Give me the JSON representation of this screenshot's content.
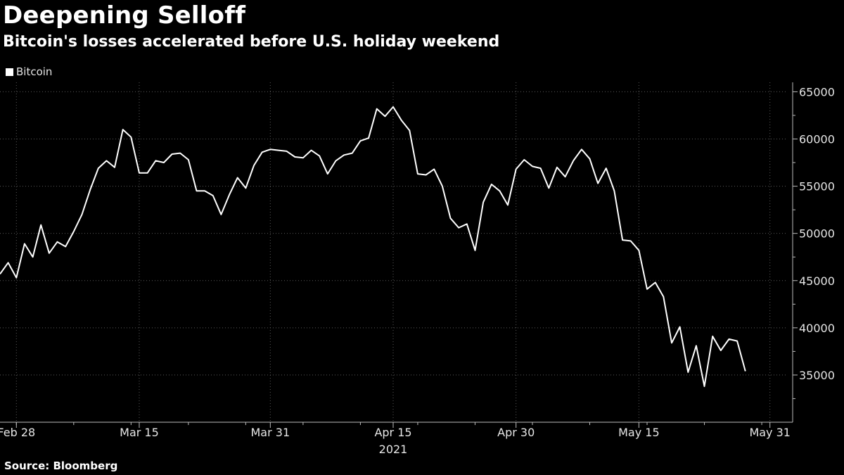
{
  "header": {
    "title": "Deepening Selloff",
    "subtitle": "Bitcoin's losses accelerated before U.S. holiday weekend"
  },
  "footer": {
    "source": "Source: Bloomberg"
  },
  "colors": {
    "background": "#000000",
    "line": "#ffffff",
    "grid": "#5a5a5a",
    "text": "#e6e6e6"
  },
  "chart_data": {
    "type": "line",
    "title": "Deepening Selloff",
    "subtitle": "Bitcoin's losses accelerated before U.S. holiday weekend",
    "legend": {
      "entries": [
        "Bitcoin"
      ],
      "placement": "top-left"
    },
    "grid": true,
    "x_range": [
      "2021-02-26",
      "2021-06-02"
    ],
    "x_ticks": [
      {
        "date": "2021-02-28",
        "label": "Feb 28"
      },
      {
        "date": "2021-03-15",
        "label": "Mar 15"
      },
      {
        "date": "2021-03-31",
        "label": "Mar 31"
      },
      {
        "date": "2021-04-15",
        "label": "Apr 15"
      },
      {
        "date": "2021-04-30",
        "label": "Apr 30"
      },
      {
        "date": "2021-05-15",
        "label": "May 15"
      },
      {
        "date": "2021-05-31",
        "label": "May 31"
      }
    ],
    "x_year_label": {
      "date": "2021-04-15",
      "label": "2021"
    },
    "y_axis": {
      "position": "right",
      "ylim": [
        30000,
        66000
      ],
      "ticks": [
        35000,
        40000,
        45000,
        50000,
        55000,
        60000,
        65000
      ]
    },
    "series": [
      {
        "name": "Bitcoin",
        "x": [
          "2021-02-26",
          "2021-02-27",
          "2021-02-28",
          "2021-03-01",
          "2021-03-02",
          "2021-03-03",
          "2021-03-04",
          "2021-03-05",
          "2021-03-06",
          "2021-03-07",
          "2021-03-08",
          "2021-03-09",
          "2021-03-10",
          "2021-03-11",
          "2021-03-12",
          "2021-03-13",
          "2021-03-14",
          "2021-03-15",
          "2021-03-16",
          "2021-03-17",
          "2021-03-18",
          "2021-03-19",
          "2021-03-20",
          "2021-03-21",
          "2021-03-22",
          "2021-03-23",
          "2021-03-24",
          "2021-03-25",
          "2021-03-26",
          "2021-03-27",
          "2021-03-28",
          "2021-03-29",
          "2021-03-30",
          "2021-03-31",
          "2021-04-01",
          "2021-04-02",
          "2021-04-03",
          "2021-04-04",
          "2021-04-05",
          "2021-04-06",
          "2021-04-07",
          "2021-04-08",
          "2021-04-09",
          "2021-04-10",
          "2021-04-11",
          "2021-04-12",
          "2021-04-13",
          "2021-04-14",
          "2021-04-15",
          "2021-04-16",
          "2021-04-17",
          "2021-04-18",
          "2021-04-19",
          "2021-04-20",
          "2021-04-21",
          "2021-04-22",
          "2021-04-23",
          "2021-04-24",
          "2021-04-25",
          "2021-04-26",
          "2021-04-27",
          "2021-04-28",
          "2021-04-29",
          "2021-04-30",
          "2021-05-01",
          "2021-05-02",
          "2021-05-03",
          "2021-05-04",
          "2021-05-05",
          "2021-05-06",
          "2021-05-07",
          "2021-05-08",
          "2021-05-09",
          "2021-05-10",
          "2021-05-11",
          "2021-05-12",
          "2021-05-13",
          "2021-05-14",
          "2021-05-15",
          "2021-05-16",
          "2021-05-17",
          "2021-05-18",
          "2021-05-19",
          "2021-05-20",
          "2021-05-21",
          "2021-05-22",
          "2021-05-23",
          "2021-05-24",
          "2021-05-25",
          "2021-05-26",
          "2021-05-27",
          "2021-05-28"
        ],
        "y": [
          45700,
          46900,
          45300,
          48900,
          47500,
          50900,
          47900,
          49100,
          48600,
          50200,
          52000,
          54600,
          56900,
          57700,
          57000,
          61000,
          60200,
          56400,
          56400,
          57700,
          57500,
          58400,
          58500,
          57800,
          54500,
          54500,
          54000,
          52000,
          54100,
          55900,
          54800,
          57200,
          58600,
          58900,
          58800,
          58700,
          58100,
          58000,
          58800,
          58200,
          56300,
          57700,
          58300,
          58500,
          59800,
          60100,
          63200,
          62400,
          63400,
          62000,
          60900,
          56300,
          56200,
          56800,
          55000,
          51600,
          50600,
          51000,
          48200,
          53300,
          55200,
          54500,
          53000,
          56800,
          57800,
          57100,
          56900,
          54800,
          57000,
          56000,
          57700,
          58900,
          57900,
          55300,
          56900,
          54500,
          49300,
          49200,
          48200,
          44100,
          44800,
          43300,
          38400,
          40100,
          35300,
          38100,
          33800,
          39100,
          37600,
          38800,
          38600,
          35400
        ]
      }
    ]
  }
}
